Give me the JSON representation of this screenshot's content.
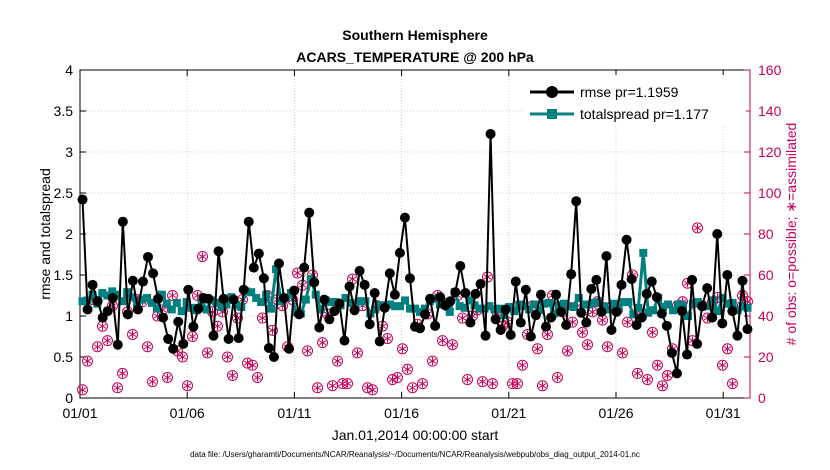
{
  "chart_data": {
    "type": "line",
    "title": "Southern Hemisphere",
    "subtitle": "ACARS_TEMPERATURE @ 200 hPa",
    "xlabel": "Jan.01,2014 00:00:00 start",
    "ylabel": "rmse and totalspread",
    "y2label": "# of obs: o=possible; ∗=assimilated",
    "x_ticks": [
      "01/01",
      "01/06",
      "01/11",
      "01/16",
      "01/21",
      "01/26",
      "01/31"
    ],
    "x_tick_values": [
      1,
      6,
      11,
      16,
      21,
      26,
      31
    ],
    "xlim": [
      1,
      32.25
    ],
    "ylim": [
      0,
      4
    ],
    "y_ticks": [
      "0",
      "0.5",
      "1",
      "1.5",
      "2",
      "2.5",
      "3",
      "3.5",
      "4"
    ],
    "y2lim": [
      0,
      160
    ],
    "y2_ticks": [
      "0",
      "20",
      "40",
      "60",
      "80",
      "100",
      "120",
      "140",
      "160"
    ],
    "grid": true,
    "legend_position": "top-right",
    "colors": {
      "rmse": "#000000",
      "totalspread": "#00807f",
      "obs": "#c8005a",
      "grid": "#cccccc"
    },
    "series": [
      {
        "name": "rmse pr=1.1959",
        "axis": "left",
        "marker": "circle",
        "values": [
          2.42,
          1.08,
          1.38,
          1.18,
          0.98,
          1.06,
          1.22,
          0.65,
          2.15,
          1.02,
          1.43,
          1.08,
          1.42,
          1.72,
          1.52,
          1.21,
          0.98,
          0.72,
          0.6,
          0.93,
          0.66,
          1.32,
          0.87,
          1.09,
          1.22,
          1.21,
          0.76,
          1.79,
          1.21,
          0.72,
          1.2,
          0.73,
          1.32,
          2.15,
          1.59,
          1.76,
          1.46,
          0.61,
          0.5,
          1.64,
          1.22,
          0.6,
          1.31,
          1.02,
          1.59,
          2.26,
          1.41,
          0.86,
          1.2,
          0.96,
          1.06,
          1.15,
          0.7,
          1.36,
          1.07,
          1.55,
          1.38,
          0.9,
          1.28,
          0.69,
          1.1,
          1.52,
          1.26,
          1.77,
          2.2,
          1.46,
          0.87,
          0.85,
          1.02,
          1.21,
          0.88,
          1.23,
          1.13,
          1.18,
          1.29,
          1.61,
          1.28,
          0.92,
          1.27,
          1.39,
          0.76,
          3.22,
          0.96,
          0.83,
          1.08,
          0.77,
          1.42,
          0.92,
          1.32,
          0.75,
          1.01,
          1.26,
          0.87,
          0.98,
          1.26,
          1.05,
          0.89,
          1.51,
          2.4,
          1.04,
          0.92,
          1.33,
          1.44,
          1.05,
          1.73,
          0.83,
          1.05,
          1.38,
          1.93,
          1.45,
          0.89,
          0.98,
          1.27,
          1.42,
          1.23,
          1.03,
          0.88,
          0.55,
          0.3,
          1.06,
          0.53,
          1.44,
          0.66,
          1.12,
          1.34,
          0.98,
          2.0,
          0.91,
          1.5,
          1.06,
          0.76,
          1.43,
          0.84
        ]
      },
      {
        "name": "totalspread pr=1.177",
        "axis": "left",
        "marker": "square",
        "values": [
          1.18,
          1.19,
          1.26,
          1.15,
          1.28,
          1.25,
          1.3,
          1.26,
          1.18,
          1.29,
          1.23,
          1.1,
          1.2,
          1.22,
          1.16,
          1.09,
          1.26,
          1.15,
          1.08,
          1.16,
          1.06,
          1.17,
          1.1,
          1.07,
          1.16,
          1.08,
          1.19,
          1.16,
          1.11,
          1.14,
          1.23,
          1.13,
          1.11,
          1.3,
          1.29,
          1.22,
          1.17,
          1.26,
          1.09,
          1.57,
          1.18,
          1.22,
          1.28,
          1.05,
          1.03,
          1.2,
          1.45,
          1.26,
          1.08,
          1.19,
          1.17,
          1.17,
          1.13,
          1.22,
          1.16,
          1.11,
          1.18,
          1.18,
          1.03,
          1.08,
          1.13,
          1.13,
          1.14,
          1.12,
          1.12,
          1.19,
          1.09,
          1.09,
          1.05,
          1.09,
          1.18,
          1.21,
          1.14,
          1.17,
          1.05,
          1.29,
          1.12,
          1.1,
          1.19,
          1.13,
          1.09,
          1.09,
          1.12,
          1.08,
          1.09,
          1.01,
          1.11,
          1.06,
          1.14,
          1.12,
          1.08,
          1.14,
          1.07,
          1.15,
          1.16,
          1.03,
          1.13,
          1.15,
          1.12,
          1.11,
          1.22,
          1.14,
          1.14,
          1.16,
          1.17,
          1.12,
          1.08,
          1.15,
          1.1,
          1.17,
          1.17,
          1.02,
          1.1,
          1.77,
          1.04,
          1.07,
          1.22,
          1.11,
          1.14,
          1.07,
          1.14,
          1.13,
          1.0,
          1.15,
          1.17,
          1.12,
          1.12,
          1.19,
          1.06,
          1.22,
          1.15,
          1.16,
          1.07,
          1.12,
          1.1
        ]
      },
      {
        "name": "possible",
        "axis": "right",
        "marker": "circle-open",
        "values": [
          4,
          18,
          48,
          25,
          35,
          28,
          45,
          5,
          12,
          42,
          31,
          48,
          47,
          25,
          8,
          40,
          43,
          10,
          50,
          23,
          20,
          6,
          30,
          50,
          69,
          22,
          42,
          35,
          42,
          20,
          11,
          39,
          48,
          17,
          16,
          10,
          39,
          50,
          33,
          48,
          45,
          25,
          48,
          61,
          55,
          23,
          60,
          5,
          27,
          41,
          6,
          18,
          7,
          7,
          58,
          22,
          45,
          5,
          4,
          45,
          35,
          29,
          9,
          10,
          24,
          14,
          5,
          36,
          7,
          41,
          18,
          50,
          28,
          45,
          26,
          50,
          39,
          9,
          40,
          43,
          8,
          59,
          7,
          41,
          35,
          37,
          7,
          7,
          16,
          31,
          45,
          24,
          6,
          31,
          50,
          10,
          42,
          23,
          37,
          45,
          32,
          26,
          42,
          47,
          38,
          25,
          45,
          43,
          22,
          37,
          60,
          12,
          41,
          9,
          32,
          16,
          6,
          11,
          24,
          45,
          47,
          56,
          28,
          83,
          45,
          39,
          47,
          49,
          16,
          24,
          7,
          44,
          50,
          47
        ]
      },
      {
        "name": "assimilated",
        "axis": "right",
        "marker": "asterisk",
        "values": [
          4,
          18,
          48,
          25,
          35,
          28,
          45,
          5,
          12,
          42,
          31,
          48,
          47,
          25,
          8,
          40,
          43,
          10,
          50,
          23,
          20,
          6,
          30,
          50,
          69,
          22,
          42,
          35,
          42,
          20,
          11,
          39,
          48,
          17,
          16,
          10,
          39,
          50,
          33,
          48,
          45,
          25,
          48,
          61,
          55,
          23,
          60,
          5,
          27,
          41,
          6,
          18,
          7,
          7,
          58,
          22,
          45,
          5,
          4,
          45,
          35,
          29,
          9,
          10,
          24,
          14,
          5,
          36,
          7,
          41,
          18,
          50,
          28,
          45,
          26,
          50,
          39,
          9,
          40,
          43,
          8,
          59,
          7,
          41,
          35,
          37,
          7,
          7,
          16,
          31,
          45,
          24,
          6,
          31,
          50,
          10,
          42,
          23,
          37,
          45,
          32,
          26,
          42,
          47,
          38,
          25,
          45,
          43,
          22,
          37,
          60,
          12,
          41,
          9,
          32,
          16,
          6,
          11,
          24,
          45,
          47,
          56,
          28,
          83,
          45,
          39,
          47,
          49,
          16,
          24,
          7,
          44,
          50,
          47
        ]
      }
    ],
    "footnote": "data file: /Users/gharamti/Documents/NCAR/Reanalysis/~/Documents/NCAR/Reanalysis/webpub/obs_diag_output_2014-01.nc"
  }
}
